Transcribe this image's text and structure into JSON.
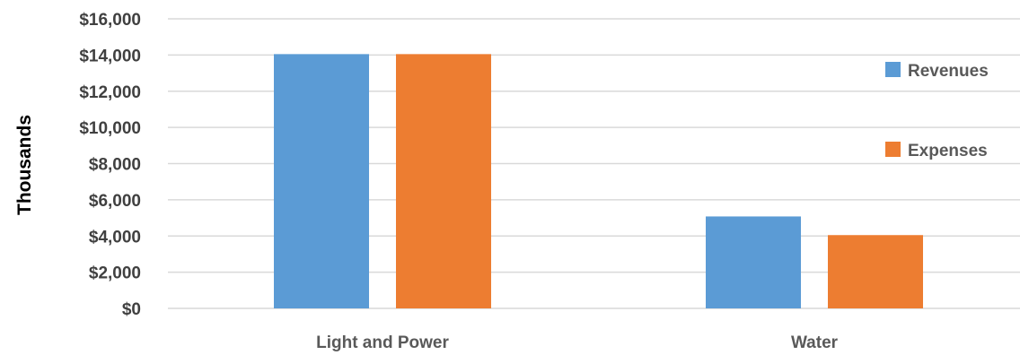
{
  "chart_data": {
    "type": "bar",
    "title": "",
    "xlabel": "",
    "ylabel": "Thousands",
    "ylim": [
      0,
      16000
    ],
    "yticks": [
      0,
      2000,
      4000,
      6000,
      8000,
      10000,
      12000,
      14000,
      16000
    ],
    "ytick_labels": [
      "$0",
      "$2,000",
      "$4,000",
      "$6,000",
      "$8,000",
      "$10,000",
      "$12,000",
      "$14,000",
      "$16,000"
    ],
    "categories": [
      "Light and Power",
      "Water"
    ],
    "series": [
      {
        "name": "Revenues",
        "values": [
          14050,
          5080
        ],
        "color": "#5b9bd5"
      },
      {
        "name": "Expenses",
        "values": [
          14050,
          4050
        ],
        "color": "#ed7d31"
      }
    ],
    "grid": true,
    "legend_position": "right"
  }
}
